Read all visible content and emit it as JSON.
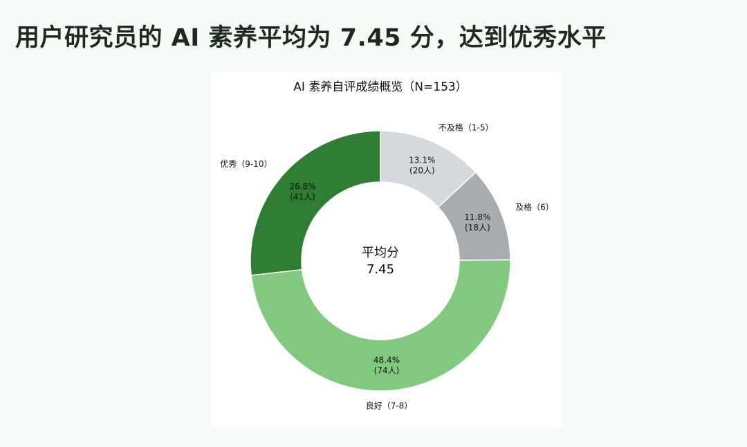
{
  "page": {
    "title": "用户研究员的 AI 素养平均为 7.45 分，达到优秀水平"
  },
  "chart_data": {
    "type": "pie",
    "variant": "donut",
    "title": "AI 素养自评成绩概览（N=153）",
    "center_label": "平均分",
    "center_value": "7.45",
    "start": "top, clockwise",
    "slices": [
      {
        "label": "不及格（1-5）",
        "percent": 13.1,
        "percent_text": "13.1%",
        "count": 20,
        "count_text": "(20人)",
        "color": "#d5d9dd"
      },
      {
        "label": "及格（6）",
        "percent": 11.8,
        "percent_text": "11.8%",
        "count": 18,
        "count_text": "(18人)",
        "color": "#a9acaf"
      },
      {
        "label": "良好（7-8）",
        "percent": 48.4,
        "percent_text": "48.4%",
        "count": 74,
        "count_text": "(74人)",
        "color": "#80c97e"
      },
      {
        "label": "优秀（9-10）",
        "percent": 26.8,
        "percent_text": "26.8%",
        "count": 41,
        "count_text": "(41人)",
        "color": "#2e7d32"
      }
    ]
  }
}
